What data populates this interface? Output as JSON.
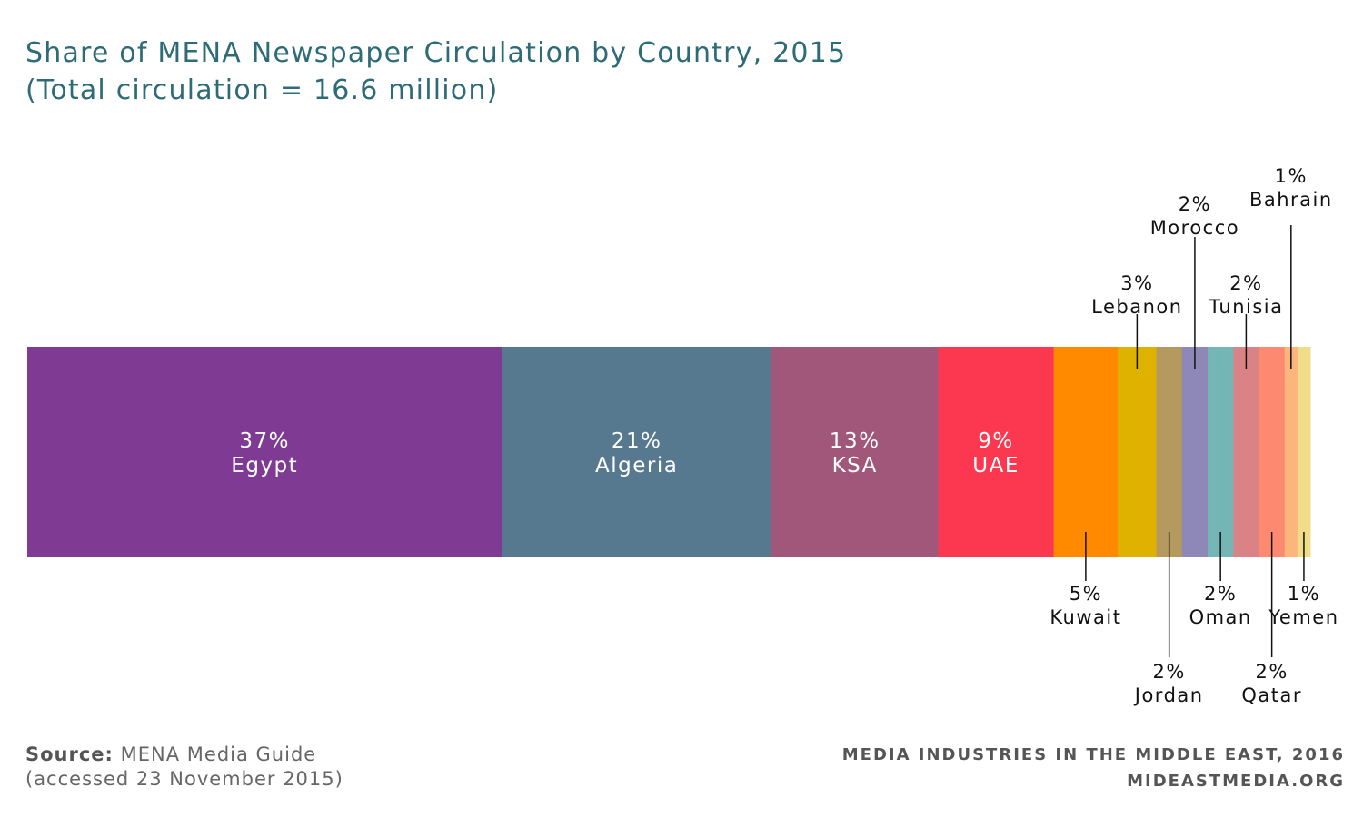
{
  "title_line1": "Share of MENA Newspaper Circulation by Country, 2015",
  "title_line2": "(Total circulation = 16.6 million)",
  "source_label": "Source:",
  "source_text": "MENA Media Guide",
  "source_line2": "(accessed 23 November 2015)",
  "footer_line1": "MEDIA INDUSTRIES IN THE MIDDLE EAST, 2016",
  "footer_line2": "MIDEASTMEDIA.ORG",
  "chart_data": {
    "type": "bar",
    "orientation": "stacked-horizontal",
    "segments": [
      {
        "name": "Egypt",
        "value": 37,
        "label": "37%",
        "color": "#7f3b94",
        "label_pos": "inside"
      },
      {
        "name": "Algeria",
        "value": 21,
        "label": "21%",
        "color": "#567990",
        "label_pos": "inside"
      },
      {
        "name": "KSA",
        "value": 13,
        "label": "13%",
        "color": "#a05779",
        "label_pos": "inside"
      },
      {
        "name": "UAE",
        "value": 9,
        "label": "9%",
        "color": "#fc3850",
        "label_pos": "inside"
      },
      {
        "name": "Kuwait",
        "value": 5,
        "label": "5%",
        "color": "#ff8a00",
        "label_pos": "below"
      },
      {
        "name": "Lebanon",
        "value": 3,
        "label": "3%",
        "color": "#e0b200",
        "label_pos": "above"
      },
      {
        "name": "Jordan",
        "value": 2,
        "label": "2%",
        "color": "#b49a5e",
        "label_pos": "below-far"
      },
      {
        "name": "Morocco",
        "value": 2,
        "label": "2%",
        "color": "#8d88b8",
        "label_pos": "above-far"
      },
      {
        "name": "Oman",
        "value": 2,
        "label": "2%",
        "color": "#74b5b5",
        "label_pos": "below"
      },
      {
        "name": "Tunisia",
        "value": 2,
        "label": "2%",
        "color": "#d98387",
        "label_pos": "above"
      },
      {
        "name": "Qatar",
        "value": 2,
        "label": "2%",
        "color": "#fd8a70",
        "label_pos": "below-far"
      },
      {
        "name": "Bahrain",
        "value": 1,
        "label": "1%",
        "color": "#fcb57a",
        "label_pos": "above-top"
      },
      {
        "name": "Yemen",
        "value": 1,
        "label": "1%",
        "color": "#efdd8a",
        "label_pos": "below"
      }
    ]
  }
}
